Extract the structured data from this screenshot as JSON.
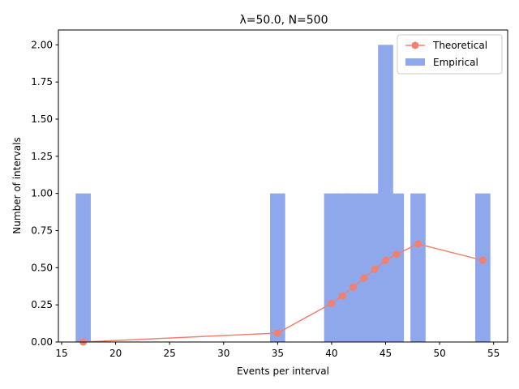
{
  "chart_data": {
    "type": "bar",
    "title": "λ=50.0, N=500",
    "xlabel": "Events per interval",
    "ylabel": "Number of intervals",
    "xlim": [
      14.7,
      56.3
    ],
    "ylim": [
      0,
      2.1
    ],
    "xticks": [
      15,
      20,
      25,
      30,
      35,
      40,
      45,
      50,
      55
    ],
    "yticks": [
      "0.00",
      "0.25",
      "0.50",
      "0.75",
      "1.00",
      "1.25",
      "1.50",
      "1.75",
      "2.00"
    ],
    "legend_position": "top-right",
    "series": [
      {
        "name": "Empirical",
        "kind": "bar",
        "color": "#8fa8ec",
        "x": [
          17,
          35,
          40,
          41,
          42,
          43,
          44,
          45,
          46,
          48,
          54
        ],
        "values": [
          1,
          1,
          1,
          1,
          1,
          1,
          1,
          2,
          1,
          1,
          1
        ]
      },
      {
        "name": "Theoretical",
        "kind": "line",
        "color": "#f08070",
        "x": [
          17,
          35,
          40,
          41,
          42,
          43,
          44,
          45,
          46,
          48,
          54
        ],
        "values": [
          0.0,
          0.06,
          0.26,
          0.31,
          0.37,
          0.43,
          0.49,
          0.55,
          0.59,
          0.66,
          0.55
        ]
      }
    ]
  }
}
